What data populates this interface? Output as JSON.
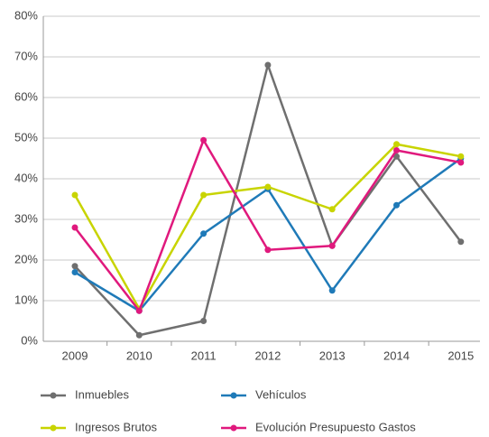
{
  "chart_data": {
    "type": "line",
    "categories": [
      "2009",
      "2010",
      "2011",
      "2012",
      "2013",
      "2014",
      "2015"
    ],
    "series": [
      {
        "name": "Inmuebles",
        "color": "#6f6f6f",
        "values": [
          18.5,
          1.5,
          5,
          68,
          23.5,
          45.5,
          24.5
        ]
      },
      {
        "name": "Vehículos",
        "color": "#1f7ab8",
        "values": [
          17,
          7.5,
          26.5,
          37.5,
          12.5,
          33.5,
          45
        ]
      },
      {
        "name": "Ingresos Brutos",
        "color": "#c8d400",
        "values": [
          36,
          8,
          36,
          38,
          32.5,
          48.5,
          45.5
        ]
      },
      {
        "name": "Evolución Presupuesto Gastos",
        "color": "#e0197d",
        "values": [
          28,
          7.5,
          49.5,
          22.5,
          23.5,
          47,
          44
        ]
      }
    ],
    "ylim": [
      0,
      80
    ],
    "yticks": [
      {
        "value": 0,
        "label": "0%"
      },
      {
        "value": 10,
        "label": "10%"
      },
      {
        "value": 20,
        "label": "20%"
      },
      {
        "value": 30,
        "label": "30%"
      },
      {
        "value": 40,
        "label": "40%"
      },
      {
        "value": 50,
        "label": "50%"
      },
      {
        "value": 60,
        "label": "60%"
      },
      {
        "value": 70,
        "label": "70%"
      },
      {
        "value": 80,
        "label": "80%"
      }
    ],
    "grid": true
  }
}
